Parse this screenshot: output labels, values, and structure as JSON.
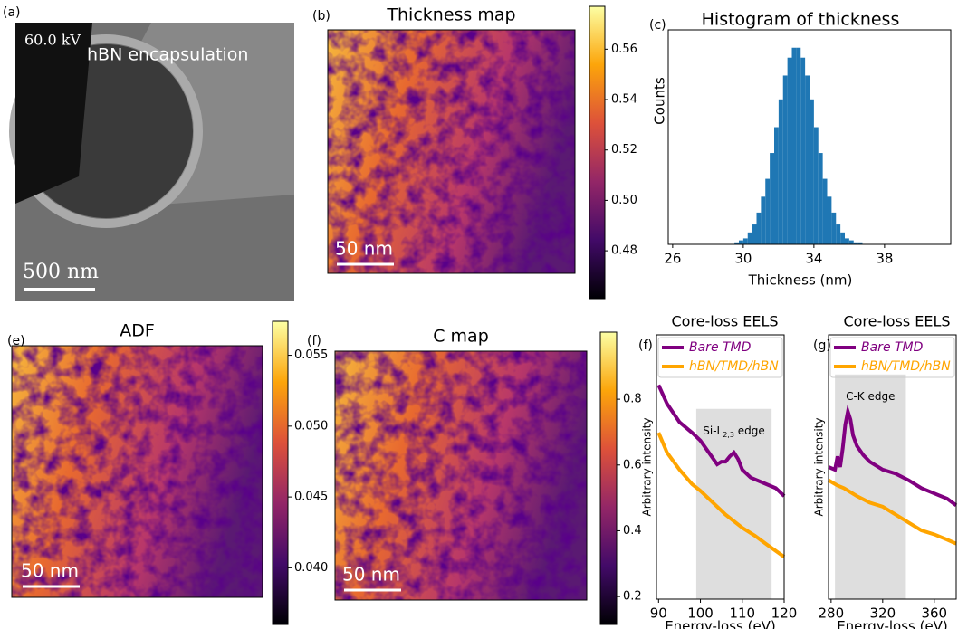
{
  "chart_data": [
    {
      "type": "image",
      "panel": "(a)",
      "labels": [
        "60.0 kV",
        "hBN encapsulation"
      ],
      "scale_bar": "500 nm"
    },
    {
      "type": "heatmap",
      "panel": "(b)",
      "title": "Thickness map",
      "scale_bar": "50 nm",
      "colorbar": {
        "lim": [
          0.461,
          0.577
        ],
        "ticks": [
          0.48,
          {
            "value": 0.5,
            "label": "0.50"
          },
          0.52,
          0.54,
          0.56
        ]
      }
    },
    {
      "type": "histogram",
      "panel": "(c)",
      "title": "Histogram of thickness",
      "xlabel": "Thickness (nm)",
      "ylabel": "Counts",
      "color": "#1f77b4",
      "bins": [
        29.5,
        29.75,
        30,
        30.25,
        30.5,
        30.75,
        31,
        31.25,
        31.5,
        31.75,
        32,
        32.25,
        32.5,
        32.75,
        33,
        33.25,
        33.5,
        33.75,
        34,
        34.25,
        34.5,
        34.75,
        35,
        35.25,
        35.5,
        35.75,
        36,
        36.25,
        36.5,
        36.75
      ],
      "counts": [
        1,
        2,
        3,
        6,
        10,
        16,
        24,
        33,
        46,
        59,
        73,
        85,
        94,
        99,
        99,
        94,
        85,
        73,
        59,
        46,
        33,
        24,
        16,
        10,
        6,
        3,
        2,
        1,
        1
      ],
      "xlim": [
        25.75,
        41.75
      ],
      "xticks": [
        26,
        30,
        34,
        38
      ],
      "ylim": [
        0,
        108
      ]
    },
    {
      "type": "heatmap",
      "panel": "(e)",
      "title": "ADF",
      "scale_bar": "50 nm",
      "colorbar": {
        "lim": [
          0.036,
          0.0574
        ],
        "ticks": [
          {
            "value": 0.04,
            "label": "0.040"
          },
          0.045,
          {
            "value": 0.05,
            "label": "0.050"
          },
          0.055
        ]
      }
    },
    {
      "type": "heatmap",
      "panel": "(f)",
      "title": "C map",
      "scale_bar": "50 nm",
      "colorbar": {
        "lim": [
          0.115,
          1.004
        ],
        "ticks": [
          0.2,
          0.4,
          0.6,
          0.8
        ]
      }
    },
    {
      "type": "line",
      "panel": "(f)",
      "title": "Core-loss EELS",
      "xlabel": "Energy-loss (eV)",
      "ylabel": "Arbitrary intensity",
      "xlim": [
        89.5,
        120
      ],
      "xticks": [
        90,
        100,
        110,
        120
      ],
      "ylim": [
        0,
        1
      ],
      "span": {
        "x": [
          99,
          117
        ],
        "top": 0.72,
        "label": {
          "text": "Si-L",
          "sub": "2,3",
          "after": " edge"
        }
      },
      "series": [
        {
          "name": "Bare TMD",
          "color": "#800080",
          "x": [
            90,
            92,
            95,
            98,
            100,
            102,
            104,
            105,
            106,
            107,
            108,
            109,
            110,
            112,
            115,
            118,
            120
          ],
          "values": [
            0.81,
            0.74,
            0.67,
            0.63,
            0.6,
            0.555,
            0.51,
            0.52,
            0.52,
            0.54,
            0.555,
            0.53,
            0.49,
            0.46,
            0.44,
            0.42,
            0.39
          ]
        },
        {
          "name": "hBN/TMD/hBN",
          "color": "#ffa500",
          "x": [
            90,
            92,
            95,
            98,
            100,
            103,
            106,
            110,
            113,
            116,
            120
          ],
          "values": [
            0.63,
            0.555,
            0.49,
            0.435,
            0.41,
            0.365,
            0.32,
            0.27,
            0.24,
            0.205,
            0.16
          ]
        }
      ]
    },
    {
      "type": "line",
      "panel": "(g)",
      "title": "Core-loss EELS",
      "xlabel": "Energy-loss (eV)",
      "ylabel": "Arbitrary intensity",
      "xlim": [
        278,
        377
      ],
      "xticks": [
        280,
        320,
        360
      ],
      "ylim": [
        0,
        1
      ],
      "span": {
        "x": [
          283,
          338
        ],
        "top": 0.85,
        "label": {
          "text": "C-K edge"
        }
      },
      "series": [
        {
          "name": "Bare TMD",
          "color": "#800080",
          "x": [
            278,
            283,
            285,
            287,
            289,
            291,
            293,
            295,
            297,
            300,
            305,
            310,
            320,
            330,
            340,
            350,
            360,
            370,
            377
          ],
          "values": [
            0.5,
            0.49,
            0.54,
            0.5,
            0.57,
            0.66,
            0.71,
            0.68,
            0.62,
            0.58,
            0.545,
            0.52,
            0.49,
            0.475,
            0.45,
            0.42,
            0.4,
            0.38,
            0.355
          ]
        },
        {
          "name": "hBN/TMD/hBN",
          "color": "#ffa500",
          "x": [
            278,
            285,
            290,
            300,
            310,
            320,
            330,
            340,
            350,
            360,
            370,
            377
          ],
          "values": [
            0.45,
            0.43,
            0.42,
            0.39,
            0.365,
            0.35,
            0.32,
            0.29,
            0.26,
            0.245,
            0.225,
            0.21
          ]
        }
      ]
    }
  ]
}
